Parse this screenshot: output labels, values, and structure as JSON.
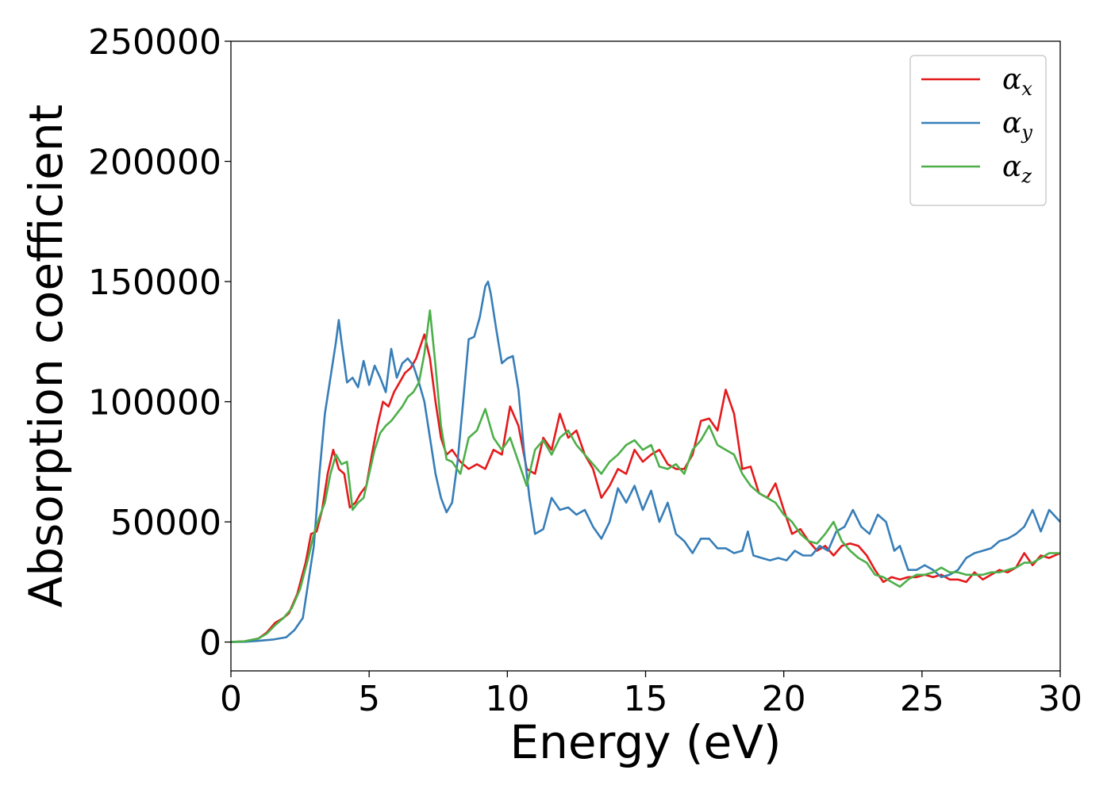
{
  "chart_data": {
    "type": "line",
    "xlabel": "Energy (eV)",
    "ylabel": "Absorption coefficient",
    "xlim": [
      0,
      30
    ],
    "ylim": [
      -12000,
      250000
    ],
    "xticks": [
      0,
      5,
      10,
      15,
      20,
      25,
      30
    ],
    "yticks": [
      0,
      50000,
      100000,
      150000,
      200000,
      250000
    ],
    "grid": false,
    "legend_position": "top-right",
    "series": [
      {
        "name": "α",
        "subscript": "x",
        "color": "#e41a1c",
        "x": [
          0,
          0.5,
          1.0,
          1.3,
          1.6,
          1.9,
          2.1,
          2.4,
          2.7,
          2.9,
          3.1,
          3.3,
          3.5,
          3.7,
          3.9,
          4.1,
          4.3,
          4.5,
          4.7,
          4.9,
          5.1,
          5.3,
          5.5,
          5.7,
          5.9,
          6.1,
          6.3,
          6.5,
          6.7,
          7.0,
          7.2,
          7.4,
          7.6,
          7.8,
          8.0,
          8.3,
          8.6,
          8.9,
          9.2,
          9.5,
          9.8,
          10.1,
          10.4,
          10.7,
          11.0,
          11.3,
          11.6,
          11.9,
          12.2,
          12.5,
          12.8,
          13.1,
          13.4,
          13.7,
          14.0,
          14.3,
          14.6,
          14.9,
          15.2,
          15.5,
          15.8,
          16.1,
          16.4,
          16.7,
          17.0,
          17.3,
          17.6,
          17.9,
          18.2,
          18.5,
          18.8,
          19.1,
          19.4,
          19.7,
          20.0,
          20.3,
          20.6,
          20.9,
          21.2,
          21.5,
          21.8,
          22.1,
          22.4,
          22.7,
          23.0,
          23.3,
          23.6,
          23.9,
          24.2,
          24.5,
          24.8,
          25.1,
          25.4,
          25.7,
          26.0,
          26.3,
          26.6,
          26.9,
          27.2,
          27.5,
          27.8,
          28.1,
          28.4,
          28.7,
          29.0,
          29.3,
          29.6,
          30.0
        ],
        "y": [
          0,
          300,
          1500,
          4000,
          8000,
          10000,
          12000,
          20000,
          33000,
          45000,
          46000,
          55000,
          70000,
          80000,
          72000,
          70000,
          56000,
          58000,
          62000,
          65000,
          78000,
          90000,
          100000,
          98000,
          104000,
          108000,
          112000,
          114000,
          118000,
          128000,
          118000,
          100000,
          85000,
          78000,
          80000,
          75000,
          72000,
          74000,
          72000,
          80000,
          78000,
          98000,
          90000,
          72000,
          70000,
          85000,
          80000,
          95000,
          85000,
          88000,
          78000,
          72000,
          60000,
          65000,
          72000,
          70000,
          80000,
          75000,
          78000,
          80000,
          74000,
          72000,
          72000,
          78000,
          92000,
          93000,
          88000,
          105000,
          95000,
          72000,
          73000,
          62000,
          60000,
          66000,
          55000,
          45000,
          47000,
          42000,
          38000,
          40000,
          36000,
          40000,
          41000,
          40000,
          36000,
          30000,
          25000,
          27000,
          26000,
          27000,
          27000,
          28000,
          27000,
          28000,
          26000,
          26000,
          25000,
          29000,
          26000,
          28000,
          30000,
          29000,
          31000,
          37000,
          32000,
          36000,
          35000,
          37000
        ]
      },
      {
        "name": "α",
        "subscript": "y",
        "color": "#377eb8",
        "x": [
          0,
          0.5,
          1.0,
          1.5,
          2.0,
          2.3,
          2.6,
          2.8,
          3.0,
          3.2,
          3.4,
          3.6,
          3.8,
          3.9,
          4.0,
          4.2,
          4.4,
          4.6,
          4.8,
          5.0,
          5.2,
          5.4,
          5.6,
          5.8,
          6.0,
          6.2,
          6.4,
          6.6,
          6.8,
          7.0,
          7.2,
          7.4,
          7.6,
          7.8,
          8.0,
          8.2,
          8.4,
          8.6,
          8.8,
          9.0,
          9.2,
          9.3,
          9.4,
          9.6,
          9.8,
          10.0,
          10.2,
          10.4,
          10.6,
          10.8,
          11.0,
          11.3,
          11.6,
          11.9,
          12.2,
          12.5,
          12.8,
          13.1,
          13.4,
          13.7,
          14.0,
          14.3,
          14.6,
          14.9,
          15.2,
          15.5,
          15.8,
          16.1,
          16.4,
          16.7,
          17.0,
          17.3,
          17.6,
          17.9,
          18.2,
          18.5,
          18.7,
          18.9,
          19.2,
          19.5,
          19.8,
          20.1,
          20.4,
          20.7,
          21.0,
          21.3,
          21.6,
          21.9,
          22.2,
          22.5,
          22.8,
          23.1,
          23.4,
          23.7,
          24.0,
          24.2,
          24.5,
          24.8,
          25.1,
          25.4,
          25.7,
          26.0,
          26.3,
          26.6,
          26.9,
          27.2,
          27.5,
          27.8,
          28.1,
          28.4,
          28.7,
          29.0,
          29.3,
          29.6,
          30.0
        ],
        "y": [
          0,
          100,
          500,
          1000,
          2000,
          5000,
          10000,
          25000,
          40000,
          70000,
          95000,
          110000,
          125000,
          134000,
          125000,
          108000,
          110000,
          106000,
          117000,
          107000,
          115000,
          110000,
          104000,
          122000,
          110000,
          116000,
          118000,
          115000,
          108000,
          100000,
          85000,
          70000,
          60000,
          54000,
          58000,
          75000,
          100000,
          126000,
          127000,
          135000,
          148000,
          150000,
          145000,
          130000,
          116000,
          118000,
          119000,
          105000,
          80000,
          60000,
          45000,
          47000,
          60000,
          55000,
          56000,
          53000,
          55000,
          48000,
          43000,
          50000,
          64000,
          58000,
          65000,
          55000,
          63000,
          50000,
          58000,
          45000,
          42000,
          37000,
          43000,
          43000,
          39000,
          39000,
          37000,
          38000,
          46000,
          36000,
          35000,
          34000,
          35000,
          34000,
          38000,
          36000,
          36000,
          40000,
          38000,
          46000,
          48000,
          55000,
          48000,
          45000,
          53000,
          50000,
          38000,
          40000,
          30000,
          30000,
          32000,
          30000,
          27000,
          28000,
          30000,
          35000,
          37000,
          38000,
          39000,
          42000,
          43000,
          45000,
          48000,
          55000,
          46000,
          55000,
          50000
        ]
      },
      {
        "name": "α",
        "subscript": "z",
        "color": "#4daf4a",
        "x": [
          0,
          0.5,
          1.0,
          1.3,
          1.6,
          1.9,
          2.2,
          2.5,
          2.8,
          3.0,
          3.2,
          3.4,
          3.6,
          3.8,
          4.0,
          4.2,
          4.4,
          4.6,
          4.8,
          5.0,
          5.2,
          5.4,
          5.6,
          5.8,
          6.0,
          6.2,
          6.4,
          6.6,
          6.8,
          7.0,
          7.2,
          7.4,
          7.6,
          7.8,
          8.0,
          8.3,
          8.6,
          8.9,
          9.2,
          9.5,
          9.8,
          10.1,
          10.4,
          10.7,
          11.0,
          11.3,
          11.6,
          11.9,
          12.2,
          12.5,
          12.8,
          13.1,
          13.4,
          13.7,
          14.0,
          14.3,
          14.6,
          14.9,
          15.2,
          15.5,
          15.8,
          16.1,
          16.4,
          16.7,
          17.0,
          17.3,
          17.6,
          17.9,
          18.2,
          18.5,
          18.8,
          19.1,
          19.4,
          19.7,
          20.0,
          20.3,
          20.6,
          20.9,
          21.2,
          21.5,
          21.8,
          22.1,
          22.4,
          22.7,
          23.0,
          23.3,
          23.6,
          23.9,
          24.2,
          24.5,
          24.8,
          25.1,
          25.4,
          25.7,
          26.0,
          26.3,
          26.6,
          26.9,
          27.2,
          27.5,
          27.8,
          28.1,
          28.4,
          28.7,
          29.0,
          29.3,
          29.6,
          30.0
        ],
        "y": [
          0,
          300,
          1500,
          3500,
          7000,
          10000,
          14000,
          22000,
          35000,
          45000,
          52000,
          58000,
          70000,
          78000,
          74000,
          75000,
          55000,
          58000,
          60000,
          70000,
          80000,
          87000,
          90000,
          92000,
          95000,
          98000,
          102000,
          104000,
          108000,
          120000,
          138000,
          115000,
          90000,
          76000,
          75000,
          70000,
          85000,
          88000,
          97000,
          85000,
          80000,
          85000,
          75000,
          65000,
          80000,
          84000,
          78000,
          85000,
          88000,
          82000,
          78000,
          74000,
          70000,
          75000,
          78000,
          82000,
          84000,
          80000,
          82000,
          73000,
          72000,
          74000,
          70000,
          80000,
          84000,
          90000,
          82000,
          80000,
          78000,
          70000,
          65000,
          62000,
          60000,
          58000,
          53000,
          50000,
          45000,
          42000,
          41000,
          45000,
          50000,
          42000,
          38000,
          35000,
          33000,
          28000,
          27000,
          25000,
          23000,
          26000,
          28000,
          28000,
          29000,
          31000,
          29000,
          29000,
          28000,
          28000,
          28000,
          29000,
          29000,
          30000,
          31000,
          33000,
          33000,
          35000,
          37000,
          37000
        ]
      }
    ]
  }
}
